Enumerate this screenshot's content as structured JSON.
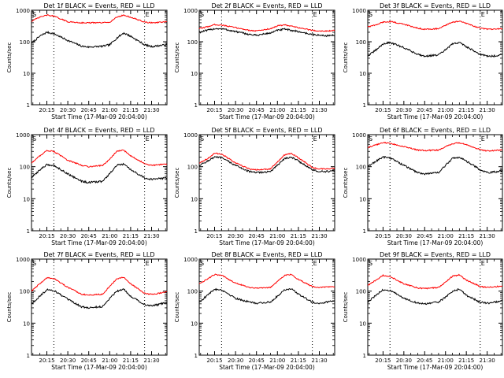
{
  "figure": {
    "ylabel": "Counts/sec",
    "xlabel": "Start Time (17-Mar-09 20:04:00)",
    "x_tick_labels": [
      "20:15",
      "20:30",
      "20:45",
      "21:00",
      "21:15",
      "21:30"
    ],
    "y_tick_labels": [
      "1",
      "10",
      "100",
      "1000"
    ],
    "colors": {
      "events": "#000000",
      "lld": "#ff0000",
      "axes": "#000000",
      "background": "#ffffff"
    },
    "markers": {
      "start_marker": "S",
      "end_marker": "E"
    }
  },
  "chart_data": [
    {
      "type": "line",
      "title": "Det 1f BLACK = Events, RED = LLD",
      "xlabel": "Start Time (17-Mar-09 20:04:00)",
      "ylabel": "Counts/sec",
      "y_scale": "log",
      "ylim": [
        1,
        1000
      ],
      "x_time_range": [
        "20:04",
        "21:41"
      ],
      "event_markers": {
        "S": "20:04",
        "E": "21:25"
      },
      "vertical_dotted_lines": [
        "20:20",
        "21:25"
      ],
      "x": [
        "20:04",
        "20:10",
        "20:15",
        "20:20",
        "20:30",
        "20:40",
        "20:45",
        "20:55",
        "21:00",
        "21:05",
        "21:10",
        "21:15",
        "21:25",
        "21:30",
        "21:35",
        "21:41"
      ],
      "series": [
        {
          "name": "Events",
          "color": "#000000",
          "values": [
            90,
            150,
            200,
            180,
            110,
            72,
            68,
            72,
            80,
            130,
            190,
            150,
            80,
            70,
            75,
            80
          ]
        },
        {
          "name": "LLD",
          "color": "#ff0000",
          "values": [
            450,
            600,
            700,
            650,
            430,
            400,
            400,
            400,
            420,
            600,
            700,
            600,
            420,
            400,
            410,
            430
          ]
        }
      ]
    },
    {
      "type": "line",
      "title": "Det 2f BLACK = Events, RED = LLD",
      "xlabel": "Start Time (17-Mar-09 20:04:00)",
      "ylabel": "Counts/sec",
      "y_scale": "log",
      "ylim": [
        1,
        1000
      ],
      "x_time_range": [
        "20:04",
        "21:41"
      ],
      "event_markers": {
        "S": "20:04",
        "E": "21:25"
      },
      "vertical_dotted_lines": [
        "20:20",
        "21:25"
      ],
      "x": [
        "20:04",
        "20:10",
        "20:15",
        "20:20",
        "20:30",
        "20:40",
        "20:45",
        "20:55",
        "21:00",
        "21:05",
        "21:10",
        "21:15",
        "21:25",
        "21:30",
        "21:35",
        "21:41"
      ],
      "series": [
        {
          "name": "Events",
          "color": "#000000",
          "values": [
            200,
            230,
            260,
            260,
            210,
            170,
            160,
            190,
            230,
            250,
            230,
            210,
            170,
            160,
            155,
            160
          ]
        },
        {
          "name": "LLD",
          "color": "#ff0000",
          "values": [
            260,
            300,
            350,
            340,
            280,
            230,
            220,
            260,
            320,
            340,
            310,
            280,
            230,
            220,
            220,
            225
          ]
        }
      ]
    },
    {
      "type": "line",
      "title": "Det 3f BLACK = Events, RED = LLD",
      "xlabel": "Start Time (17-Mar-09 20:04:00)",
      "ylabel": "Counts/sec",
      "y_scale": "log",
      "ylim": [
        1,
        1000
      ],
      "x_time_range": [
        "20:04",
        "21:41"
      ],
      "event_markers": {
        "S": "20:04",
        "E": "21:25"
      },
      "vertical_dotted_lines": [
        "20:20",
        "21:25"
      ],
      "x": [
        "20:04",
        "20:10",
        "20:15",
        "20:20",
        "20:30",
        "20:40",
        "20:45",
        "20:55",
        "21:00",
        "21:05",
        "21:10",
        "21:15",
        "21:25",
        "21:30",
        "21:35",
        "21:41"
      ],
      "series": [
        {
          "name": "Events",
          "color": "#000000",
          "values": [
            35,
            55,
            85,
            95,
            65,
            40,
            35,
            38,
            55,
            85,
            95,
            70,
            40,
            35,
            35,
            40
          ]
        },
        {
          "name": "LLD",
          "color": "#ff0000",
          "values": [
            300,
            340,
            420,
            440,
            360,
            270,
            250,
            260,
            330,
            420,
            450,
            380,
            270,
            250,
            250,
            260
          ]
        }
      ]
    },
    {
      "type": "line",
      "title": "Det 4f BLACK = Events, RED = LLD",
      "xlabel": "Start Time (17-Mar-09 20:04:00)",
      "ylabel": "Counts/sec",
      "y_scale": "log",
      "ylim": [
        1,
        1000
      ],
      "x_time_range": [
        "20:04",
        "21:41"
      ],
      "event_markers": {
        "S": "20:04",
        "E": "21:25"
      },
      "vertical_dotted_lines": [
        "20:20",
        "21:25"
      ],
      "x": [
        "20:04",
        "20:10",
        "20:15",
        "20:20",
        "20:30",
        "20:40",
        "20:45",
        "20:55",
        "21:00",
        "21:05",
        "21:10",
        "21:15",
        "21:25",
        "21:30",
        "21:35",
        "21:41"
      ],
      "series": [
        {
          "name": "Events",
          "color": "#000000",
          "values": [
            45,
            80,
            115,
            110,
            60,
            35,
            32,
            35,
            60,
            110,
            120,
            80,
            45,
            40,
            42,
            45
          ]
        },
        {
          "name": "LLD",
          "color": "#ff0000",
          "values": [
            130,
            220,
            320,
            300,
            160,
            110,
            100,
            110,
            170,
            300,
            330,
            220,
            125,
            110,
            115,
            120
          ]
        }
      ]
    },
    {
      "type": "line",
      "title": "Det 5f BLACK = Events, RED = LLD",
      "xlabel": "Start Time (17-Mar-09 20:04:00)",
      "ylabel": "Counts/sec",
      "y_scale": "log",
      "ylim": [
        1,
        1000
      ],
      "x_time_range": [
        "20:04",
        "21:41"
      ],
      "event_markers": {
        "S": "20:04",
        "E": "21:25"
      },
      "vertical_dotted_lines": [
        "20:20",
        "21:25"
      ],
      "x": [
        "20:04",
        "20:10",
        "20:15",
        "20:20",
        "20:30",
        "20:40",
        "20:45",
        "20:55",
        "21:00",
        "21:05",
        "21:10",
        "21:15",
        "21:25",
        "21:30",
        "21:35",
        "21:41"
      ],
      "series": [
        {
          "name": "Events",
          "color": "#000000",
          "values": [
            110,
            150,
            200,
            190,
            110,
            70,
            65,
            70,
            110,
            180,
            200,
            150,
            80,
            70,
            70,
            75
          ]
        },
        {
          "name": "LLD",
          "color": "#ff0000",
          "values": [
            130,
            180,
            260,
            250,
            130,
            85,
            80,
            85,
            140,
            230,
            260,
            190,
            95,
            85,
            85,
            90
          ]
        }
      ]
    },
    {
      "type": "line",
      "title": "Det 6f BLACK = Events, RED = LLD",
      "xlabel": "Start Time (17-Mar-09 20:04:00)",
      "ylabel": "Counts/sec",
      "y_scale": "log",
      "ylim": [
        1,
        1000
      ],
      "x_time_range": [
        "20:04",
        "21:41"
      ],
      "event_markers": {
        "S": "20:04",
        "E": "21:25"
      },
      "vertical_dotted_lines": [
        "20:20",
        "21:25"
      ],
      "x": [
        "20:04",
        "20:10",
        "20:15",
        "20:20",
        "20:30",
        "20:40",
        "20:45",
        "20:55",
        "21:00",
        "21:05",
        "21:10",
        "21:15",
        "21:25",
        "21:30",
        "21:35",
        "21:41"
      ],
      "series": [
        {
          "name": "Events",
          "color": "#000000",
          "values": [
            100,
            150,
            200,
            190,
            110,
            65,
            60,
            65,
            110,
            180,
            200,
            150,
            80,
            65,
            68,
            75
          ]
        },
        {
          "name": "LLD",
          "color": "#ff0000",
          "values": [
            400,
            480,
            560,
            540,
            420,
            330,
            320,
            330,
            420,
            520,
            560,
            480,
            340,
            310,
            320,
            340
          ]
        }
      ]
    },
    {
      "type": "line",
      "title": "Det 7f BLACK = Events, RED = LLD",
      "xlabel": "Start Time (17-Mar-09 20:04:00)",
      "ylabel": "Counts/sec",
      "y_scale": "log",
      "ylim": [
        1,
        1000
      ],
      "x_time_range": [
        "20:04",
        "21:41"
      ],
      "event_markers": {
        "S": "20:04",
        "E": "21:25"
      },
      "vertical_dotted_lines": [
        "20:20",
        "21:25"
      ],
      "x": [
        "20:04",
        "20:10",
        "20:15",
        "20:20",
        "20:30",
        "20:40",
        "20:45",
        "20:55",
        "21:00",
        "21:05",
        "21:10",
        "21:15",
        "21:25",
        "21:30",
        "21:35",
        "21:41"
      ],
      "series": [
        {
          "name": "Events",
          "color": "#000000",
          "values": [
            40,
            70,
            110,
            105,
            55,
            32,
            30,
            33,
            60,
            100,
            115,
            70,
            38,
            35,
            38,
            45
          ]
        },
        {
          "name": "LLD",
          "color": "#ff0000",
          "values": [
            100,
            170,
            260,
            250,
            130,
            80,
            75,
            80,
            140,
            240,
            270,
            170,
            85,
            80,
            85,
            95
          ]
        }
      ]
    },
    {
      "type": "line",
      "title": "Det 8f BLACK = Events, RED = LLD",
      "xlabel": "Start Time (17-Mar-09 20:04:00)",
      "ylabel": "Counts/sec",
      "y_scale": "log",
      "ylim": [
        1,
        1000
      ],
      "x_time_range": [
        "20:04",
        "21:41"
      ],
      "event_markers": {
        "S": "20:04",
        "E": "21:25"
      },
      "vertical_dotted_lines": [
        "20:20",
        "21:25"
      ],
      "x": [
        "20:04",
        "20:10",
        "20:15",
        "20:20",
        "20:30",
        "20:40",
        "20:45",
        "20:55",
        "21:00",
        "21:05",
        "21:10",
        "21:15",
        "21:25",
        "21:30",
        "21:35",
        "21:41"
      ],
      "series": [
        {
          "name": "Events",
          "color": "#000000",
          "values": [
            45,
            75,
            115,
            110,
            60,
            45,
            42,
            45,
            70,
            110,
            120,
            80,
            45,
            42,
            45,
            50
          ]
        },
        {
          "name": "LLD",
          "color": "#ff0000",
          "values": [
            170,
            240,
            330,
            310,
            180,
            130,
            125,
            130,
            200,
            310,
            330,
            230,
            140,
            130,
            135,
            140
          ]
        }
      ]
    },
    {
      "type": "line",
      "title": "Det 9f BLACK = Events, RED = LLD",
      "xlabel": "Start Time (17-Mar-09 20:04:00)",
      "ylabel": "Counts/sec",
      "y_scale": "log",
      "ylim": [
        1,
        1000
      ],
      "x_time_range": [
        "20:04",
        "21:41"
      ],
      "event_markers": {
        "S": "20:04",
        "E": "21:25"
      },
      "vertical_dotted_lines": [
        "20:20",
        "21:25"
      ],
      "x": [
        "20:04",
        "20:10",
        "20:15",
        "20:20",
        "20:30",
        "20:40",
        "20:45",
        "20:55",
        "21:00",
        "21:05",
        "21:10",
        "21:15",
        "21:25",
        "21:30",
        "21:35",
        "21:41"
      ],
      "series": [
        {
          "name": "Events",
          "color": "#000000",
          "values": [
            45,
            75,
            110,
            105,
            60,
            42,
            40,
            45,
            65,
            100,
            115,
            75,
            45,
            42,
            45,
            50
          ]
        },
        {
          "name": "LLD",
          "color": "#ff0000",
          "values": [
            150,
            220,
            310,
            290,
            170,
            125,
            120,
            130,
            190,
            290,
            320,
            220,
            140,
            130,
            135,
            145
          ]
        }
      ]
    }
  ]
}
